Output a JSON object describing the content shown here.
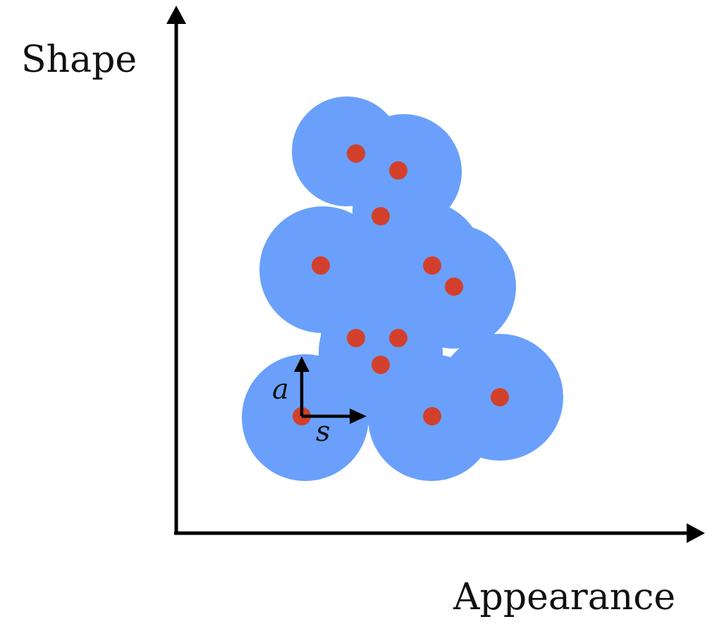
{
  "axes": {
    "y_label": "Shape",
    "x_label": "Appearance"
  },
  "vectors": {
    "vertical_label": "a",
    "horizontal_label": "s"
  },
  "colors": {
    "region": "#6aa0fb",
    "point": "#d2402b",
    "axis": "#000000",
    "background": "#ffffff"
  },
  "points": [
    {
      "appearance": 505,
      "shape": 218
    },
    {
      "appearance": 565,
      "shape": 242
    },
    {
      "appearance": 540,
      "shape": 307
    },
    {
      "appearance": 455,
      "shape": 377
    },
    {
      "appearance": 613,
      "shape": 377
    },
    {
      "appearance": 644,
      "shape": 407
    },
    {
      "appearance": 505,
      "shape": 480
    },
    {
      "appearance": 565,
      "shape": 480
    },
    {
      "appearance": 540,
      "shape": 518
    },
    {
      "appearance": 428,
      "shape": 591
    },
    {
      "appearance": 613,
      "shape": 591
    },
    {
      "appearance": 709,
      "shape": 564
    }
  ]
}
